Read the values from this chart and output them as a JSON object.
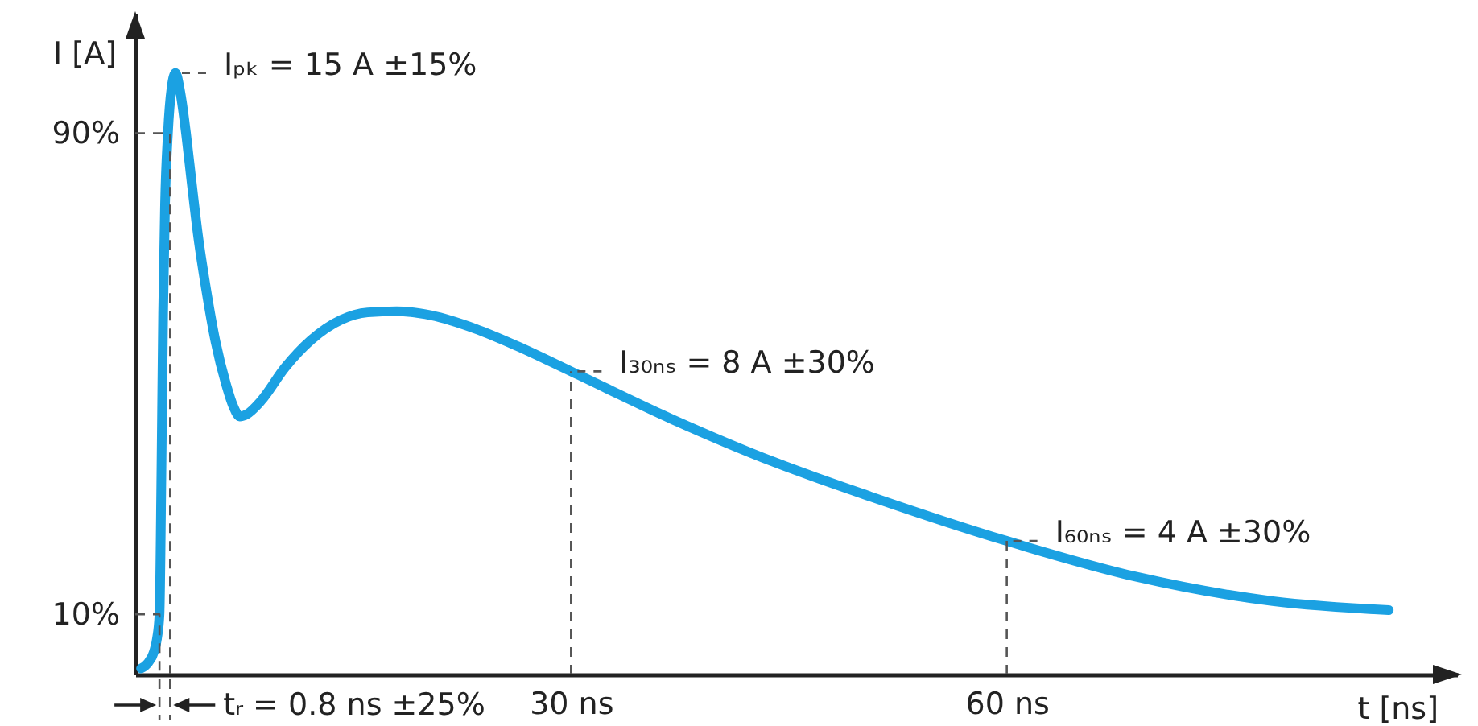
{
  "chart_data": {
    "type": "line",
    "xlabel": "t [ns]",
    "ylabel": "I [A]",
    "series": [
      {
        "color": "#1ba1e2",
        "x": [
          0.4,
          0.9,
          1.29,
          1.5,
          1.67,
          1.8,
          1.92,
          2.05,
          2.25,
          2.5,
          2.77,
          3.05,
          3.21,
          3.5,
          3.88,
          4.32,
          4.87,
          5.53,
          6.26,
          6.75,
          7.2,
          7.7,
          8.66,
          10.3,
          12.1,
          14.2,
          16,
          18,
          20.4,
          23.4,
          26.3,
          30,
          37,
          44,
          50.6,
          60,
          69,
          78.3,
          86.3
        ],
        "values": [
          1,
          2,
          3.8,
          6,
          10,
          33,
          60,
          78,
          90,
          97.5,
          100,
          97.5,
          95.2,
          89.9,
          81.9,
          73,
          64.2,
          55.3,
          48.2,
          44.6,
          42.9,
          43.3,
          45.5,
          51,
          55.6,
          59,
          60.2,
          60.4,
          59.7,
          57.5,
          54.6,
          50.4,
          42.4,
          35.3,
          29.6,
          22.2,
          16.2,
          12.2,
          10.7
        ]
      },
      {
        "color": "#555555",
        "line_style": "dashed",
        "x": [
          0,
          1.67,
          1.67
        ],
        "values": [
          10,
          10,
          0
        ]
      },
      {
        "color": "#555555",
        "line_style": "dashed",
        "x": [
          0,
          2.4,
          2.4
        ],
        "values": [
          90,
          90,
          0
        ]
      }
    ],
    "xlim": [
      0,
      91
    ],
    "ylim": [
      0,
      110
    ],
    "xticks": [
      {
        "value": 30,
        "label": "30 ns"
      },
      {
        "value": 60,
        "label": "60 ns"
      }
    ],
    "yticks": [
      {
        "value": 10,
        "label": "10%"
      },
      {
        "value": 90,
        "label": "90%"
      }
    ],
    "ref_lines": [
      {
        "axis": "x",
        "value": 30,
        "line_style": "dashed"
      },
      {
        "axis": "x",
        "value": 60,
        "line_style": "dashed"
      }
    ],
    "annotations": [
      {
        "text": "Iₚₖ = 15 A ±15%",
        "x": 2.77,
        "y": 100
      },
      {
        "text": "I₃₀ₙₛ = 8 A ±30%",
        "x": 30,
        "y": 50.4
      },
      {
        "text": "I₆₀ₙₛ = 4 A ±30%",
        "x": 60,
        "y": 22.2
      },
      "tᵣ = 0.8 ns ±25%"
    ]
  }
}
